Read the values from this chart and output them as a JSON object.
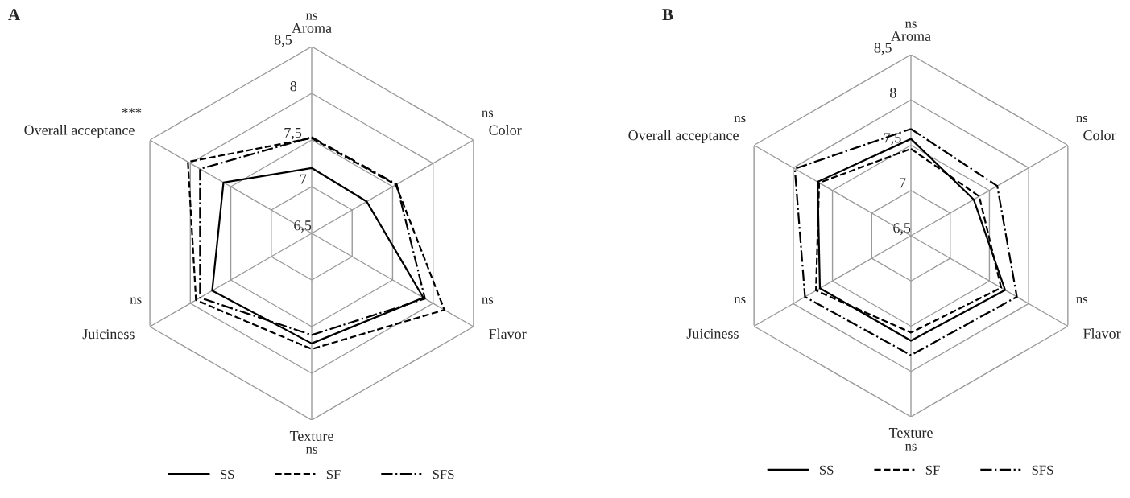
{
  "chart_data": [
    {
      "type": "radar",
      "title": "A",
      "categories": [
        "Aroma",
        "Color",
        "Flavor",
        "Texture",
        "Juiciness",
        "Overall acceptance"
      ],
      "annotations": [
        "ns",
        "ns",
        "ns",
        "ns",
        "ns",
        "***"
      ],
      "series": [
        {
          "name": "SS",
          "color": "#000000",
          "line_style": "solid",
          "values": [
            7.2,
            7.18,
            7.88,
            7.68,
            7.73,
            7.59
          ]
        },
        {
          "name": "SF",
          "color": "#000000",
          "line_style": "dashed",
          "values": [
            7.52,
            7.54,
            8.14,
            7.74,
            7.93,
            8.03
          ]
        },
        {
          "name": "SFS",
          "color": "#000000",
          "line_style": "dashdot",
          "values": [
            7.53,
            7.55,
            7.9,
            7.59,
            7.88,
            7.88
          ]
        }
      ],
      "ylim": [
        6.5,
        8.5
      ],
      "yticks": [
        {
          "value": 6.5,
          "label": "6,5"
        },
        7,
        {
          "value": 7.5,
          "label": "7,5"
        },
        8,
        {
          "value": 8.5,
          "label": "8,5"
        }
      ],
      "grid": true,
      "legend": "bottom"
    },
    {
      "type": "radar",
      "title": "B",
      "categories": [
        "Aroma",
        "Color",
        "Flavor",
        "Texture",
        "Juiciness",
        "Overall acceptance"
      ],
      "annotations": [
        "ns",
        "ns",
        "ns",
        "ns",
        "ns",
        "ns"
      ],
      "series": [
        {
          "name": "SS",
          "color": "#000000",
          "line_style": "solid",
          "values": [
            7.57,
            7.3,
            7.7,
            7.66,
            7.66,
            7.69
          ]
        },
        {
          "name": "SF",
          "color": "#000000",
          "line_style": "dashed",
          "values": [
            7.46,
            7.37,
            7.65,
            7.57,
            7.71,
            7.67
          ]
        },
        {
          "name": "SFS",
          "color": "#000000",
          "line_style": "dashdot",
          "values": [
            7.68,
            7.6,
            7.85,
            7.82,
            7.85,
            7.98
          ]
        }
      ],
      "ylim": [
        6.5,
        8.5
      ],
      "yticks": [
        {
          "value": 6.5,
          "label": "6,5"
        },
        7,
        {
          "value": 7.5,
          "label": "7,5"
        },
        8,
        {
          "value": 8.5,
          "label": "8,5"
        }
      ],
      "grid": true,
      "legend": "bottom"
    }
  ]
}
